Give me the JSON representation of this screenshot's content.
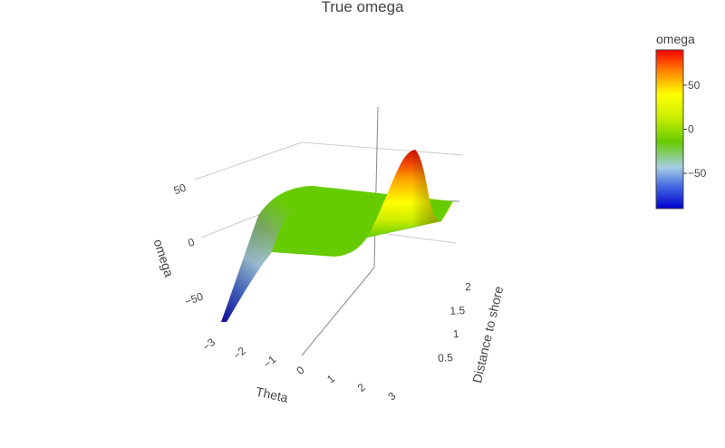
{
  "chart_data": {
    "type": "surface",
    "title": "True omega",
    "colorbar": {
      "title": "omega",
      "ticks": [
        "50",
        "0",
        "−50"
      ],
      "tick_values": [
        50,
        0,
        -50
      ],
      "range": [
        -90,
        90
      ],
      "colorscale": [
        "#0000cc",
        "#4169e1",
        "#a6cee3",
        "#66cc00",
        "#ccee00",
        "#ffff00",
        "#ff8800",
        "#ff0000"
      ]
    },
    "axes": {
      "x": {
        "title": "Theta",
        "ticks": [
          "−3",
          "−2",
          "−1",
          "0",
          "1",
          "2",
          "3"
        ],
        "tick_values": [
          -3,
          -2,
          -1,
          0,
          1,
          2,
          3
        ],
        "range": [
          -3.14,
          3.14
        ]
      },
      "y": {
        "title": "Distance to shore",
        "ticks": [
          "0.5",
          "1",
          "1.5",
          "2"
        ],
        "tick_values": [
          0.5,
          1,
          1.5,
          2
        ],
        "range": [
          0.25,
          2.25
        ]
      },
      "z": {
        "title": "omega",
        "ticks": [
          "50",
          "0",
          "−50"
        ],
        "tick_values": [
          50,
          0,
          -50
        ],
        "range": [
          -90,
          90
        ]
      }
    },
    "surface_samples": [
      {
        "theta": -3.14,
        "distance": 0.25,
        "omega": -88
      },
      {
        "theta": -2.5,
        "distance": 1.0,
        "omega": -35
      },
      {
        "theta": -2.0,
        "distance": 1.0,
        "omega": -3
      },
      {
        "theta": 0.0,
        "distance": 1.0,
        "omega": 0
      },
      {
        "theta": 2.0,
        "distance": 1.0,
        "omega": 3
      },
      {
        "theta": 2.5,
        "distance": 1.0,
        "omega": 35
      },
      {
        "theta": 3.14,
        "distance": 0.25,
        "omega": 88
      }
    ]
  }
}
